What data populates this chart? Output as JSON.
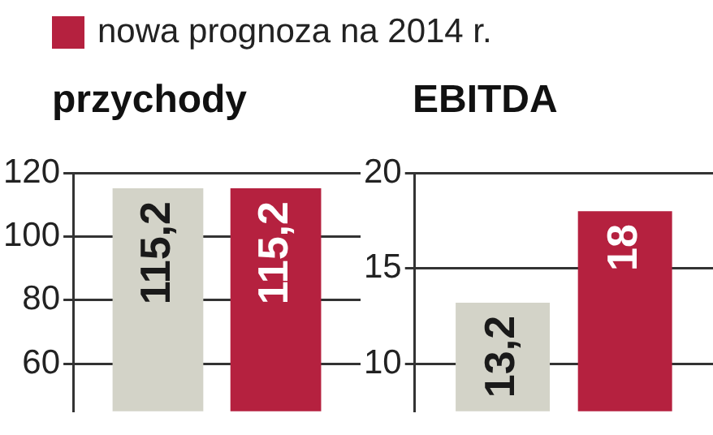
{
  "chart_data": [
    {
      "type": "bar",
      "title": "przychody",
      "categories": [
        null
      ],
      "legend": "top",
      "series": [
        {
          "color": "#d3d3c8",
          "values": [
            115.2
          ],
          "value_labels": [
            "115,2"
          ]
        },
        {
          "name": "nowa prognoza na 2014 r.",
          "color": "#b5213f",
          "values": [
            115.2
          ],
          "value_labels": [
            "115,2"
          ]
        }
      ],
      "ylim": [
        45,
        120
      ],
      "yticks": [
        60,
        80,
        100,
        120
      ],
      "grid": "y"
    },
    {
      "type": "bar",
      "title": "EBITDA",
      "categories": [
        null
      ],
      "series": [
        {
          "color": "#d3d3c8",
          "values": [
            13.2
          ],
          "value_labels": [
            "13,2"
          ]
        },
        {
          "color": "#b5213f",
          "values": [
            18
          ],
          "value_labels": [
            "18"
          ]
        }
      ],
      "ylim": [
        7.5,
        20
      ],
      "yticks": [
        10,
        15,
        20
      ],
      "grid": "y"
    }
  ]
}
